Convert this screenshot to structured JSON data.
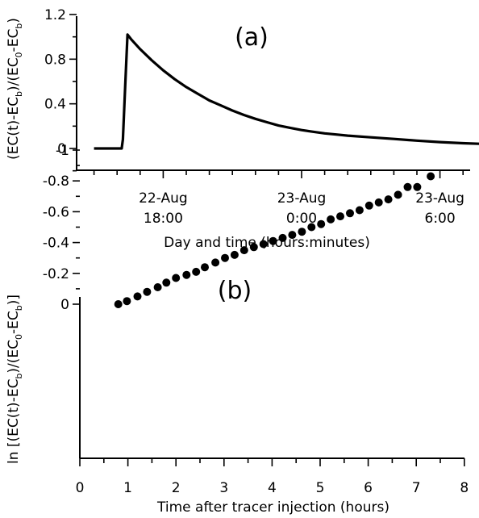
{
  "chart_data": [
    {
      "type": "line",
      "panel_label": "(a)",
      "ylabel_parts": {
        "p1": "(EC(t)-EC",
        "s1": "b",
        "p2": ")/(EC",
        "s2": "0",
        "p3": "-EC",
        "s3": "b",
        "p4": ")"
      },
      "xlabel": "Day and time (hours:minutes)",
      "x_units": "hours since 22-Aug 12:00",
      "ylim": [
        -0.2,
        1.2
      ],
      "xlim": [
        2.0,
        21.5
      ],
      "y_ticks": [
        {
          "value": 0,
          "label": "0"
        },
        {
          "value": 0.4,
          "label": "0.4"
        },
        {
          "value": 0.8,
          "label": "0.8"
        },
        {
          "value": 1.2,
          "label": "1.2"
        }
      ],
      "x_major_ticks": [
        {
          "value": 6,
          "line1": "22-Aug",
          "line2": "18:00"
        },
        {
          "value": 12,
          "line1": "23-Aug",
          "line2": "0:00"
        },
        {
          "value": 18,
          "line1": "23-Aug",
          "line2": "6:00"
        }
      ],
      "x_minor_step": 1,
      "series": [
        {
          "points": [
            [
              3.0,
              0.0
            ],
            [
              4.2,
              0.0
            ],
            [
              4.25,
              0.08
            ],
            [
              4.35,
              0.55
            ],
            [
              4.45,
              1.02
            ],
            [
              4.6,
              0.98
            ],
            [
              5.0,
              0.89
            ],
            [
              5.5,
              0.79
            ],
            [
              6.0,
              0.7
            ],
            [
              6.5,
              0.62
            ],
            [
              7.0,
              0.55
            ],
            [
              7.5,
              0.49
            ],
            [
              8.0,
              0.43
            ],
            [
              8.5,
              0.385
            ],
            [
              9.0,
              0.34
            ],
            [
              9.5,
              0.3
            ],
            [
              10.0,
              0.265
            ],
            [
              10.5,
              0.235
            ],
            [
              11.0,
              0.205
            ],
            [
              11.5,
              0.185
            ],
            [
              12.0,
              0.165
            ],
            [
              12.5,
              0.15
            ],
            [
              13.0,
              0.135
            ],
            [
              13.5,
              0.125
            ],
            [
              14.0,
              0.115
            ],
            [
              15.0,
              0.1
            ],
            [
              16.0,
              0.085
            ],
            [
              17.0,
              0.07
            ],
            [
              18.0,
              0.057
            ],
            [
              19.0,
              0.047
            ],
            [
              20.0,
              0.04
            ],
            [
              20.6,
              0.036
            ]
          ]
        }
      ]
    },
    {
      "type": "scatter",
      "panel_label": "(b)",
      "ylabel_parts": {
        "p1": "ln [(EC(t)-EC",
        "s1": "b",
        "p2": ")/(EC",
        "s2": "0",
        "p3": "-EC",
        "s3": "b",
        "p4": ")]"
      },
      "xlabel": "Time after tracer injection (hours)",
      "xlim": [
        0,
        8
      ],
      "ylim": [
        -1,
        0
      ],
      "x_ticks": [
        "0",
        "1",
        "2",
        "3",
        "4",
        "5",
        "6",
        "7",
        "8"
      ],
      "y_ticks": [
        "0",
        "-0.2",
        "-0.4",
        "-0.6",
        "-0.8",
        "-1"
      ],
      "series": [
        {
          "x": [
            0.8,
            0.98,
            1.2,
            1.4,
            1.62,
            1.8,
            2.0,
            2.22,
            2.42,
            2.6,
            2.82,
            3.02,
            3.22,
            3.42,
            3.62,
            3.82,
            4.02,
            4.22,
            4.42,
            4.62,
            4.82,
            5.02,
            5.22,
            5.42,
            5.62,
            5.82,
            6.02,
            6.22,
            6.42,
            6.62,
            6.82,
            7.02,
            7.3
          ],
          "y": [
            0.0,
            -0.02,
            -0.05,
            -0.08,
            -0.11,
            -0.14,
            -0.17,
            -0.19,
            -0.21,
            -0.24,
            -0.27,
            -0.3,
            -0.32,
            -0.35,
            -0.37,
            -0.39,
            -0.41,
            -0.43,
            -0.45,
            -0.47,
            -0.5,
            -0.52,
            -0.55,
            -0.57,
            -0.59,
            -0.61,
            -0.64,
            -0.66,
            -0.68,
            -0.71,
            -0.76,
            -0.76,
            -0.83
          ]
        }
      ]
    }
  ]
}
